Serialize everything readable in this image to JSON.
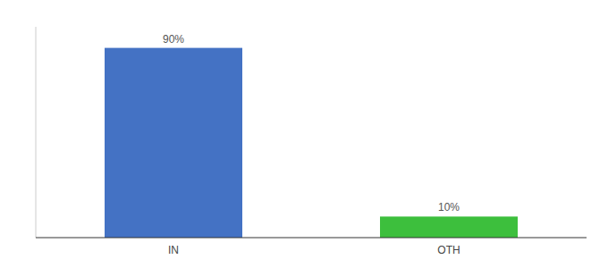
{
  "chart_data": {
    "type": "bar",
    "categories": [
      "IN",
      "OTH"
    ],
    "values": [
      90,
      10
    ],
    "value_labels": [
      "90%",
      "10%"
    ],
    "colors": [
      "#4472c4",
      "#3dbf3d"
    ],
    "ylim": [
      0,
      100
    ],
    "data_labels": true,
    "tick_labels": "x",
    "grid": false
  }
}
